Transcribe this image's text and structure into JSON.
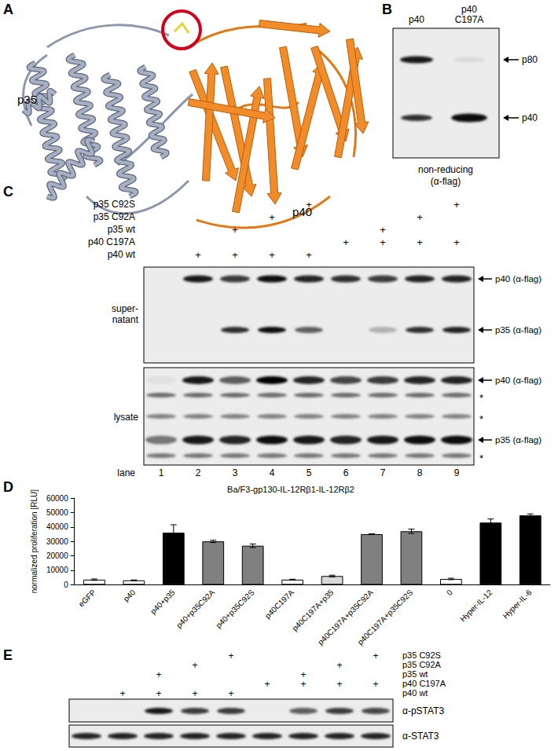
{
  "panels": {
    "A": {
      "label": "A",
      "texts": [
        "p35",
        "p40"
      ]
    },
    "B": {
      "label": "B",
      "columns": [
        [
          "p40"
        ],
        [
          "p40",
          "C197A"
        ]
      ],
      "bands": [
        "p80",
        "p40"
      ],
      "caption": [
        "non-reducing",
        "(α-flag)"
      ]
    },
    "C": {
      "label": "C",
      "mark": "+",
      "rows": [
        {
          "label": "p35 C92S",
          "lanes": [
            5,
            9
          ]
        },
        {
          "label": "p35 C92A",
          "lanes": [
            4,
            8
          ]
        },
        {
          "label": "p35 wt",
          "lanes": [
            3,
            7
          ]
        },
        {
          "label": "p40 C197A",
          "lanes": [
            6,
            7,
            8,
            9
          ]
        },
        {
          "label": "p40 wt",
          "lanes": [
            2,
            3,
            4,
            5
          ]
        }
      ],
      "blots": [
        {
          "label": [
            "super-",
            "natant"
          ],
          "bands": [
            "p40 (α-flag)",
            "p35 (α-flag)"
          ]
        },
        {
          "label": [
            "lysate"
          ],
          "bands": [
            "p40 (α-flag)",
            "p35 (α-flag)"
          ],
          "nonspecific": "*"
        }
      ],
      "lane_label": "lane",
      "lanes": [
        1,
        2,
        3,
        4,
        5,
        6,
        7,
        8,
        9
      ]
    },
    "D": {
      "label": "D"
    },
    "E": {
      "label": "E",
      "mark": "+",
      "rows": [
        {
          "label": "p35 C92S",
          "lanes": [
            5,
            9
          ]
        },
        {
          "label": "p35 C92A",
          "lanes": [
            4,
            8
          ]
        },
        {
          "label": "p35 wt",
          "lanes": [
            3,
            7
          ]
        },
        {
          "label": "p40 C197A",
          "lanes": [
            6,
            7,
            8,
            9
          ]
        },
        {
          "label": "p40 wt",
          "lanes": [
            2,
            3,
            4,
            5
          ]
        }
      ],
      "blots": [
        "α-pSTAT3",
        "α-STAT3"
      ]
    }
  },
  "chart_data": {
    "type": "bar",
    "title": "Ba/F3-gp130-IL-12Rβ1-IL-12Rβ2",
    "y_label": "normalized proliferation [RLU]",
    "categories": [
      "eGFP",
      "p40",
      "p40+p35",
      "p40+p35C92A",
      "p40+p35C92S",
      "p40C197A",
      "p40C197A+p35",
      "p40C197A+p35C92A",
      "p40C197A+p35C92S",
      "0",
      "Hyper-IL-12",
      "Hyper-IL-6"
    ],
    "values": [
      3500,
      3000,
      36000,
      30000,
      27000,
      3500,
      6000,
      35000,
      37000,
      4000,
      43000,
      48000
    ],
    "errors": [
      500,
      300,
      5500,
      800,
      1200,
      300,
      600,
      300,
      1500,
      500,
      2500,
      1000
    ],
    "colors": [
      "#ffffff",
      "#ffffff",
      "#000000",
      "#808080",
      "#808080",
      "#ffffff",
      "#d9d9d9",
      "#808080",
      "#808080",
      "#ffffff",
      "#000000",
      "#000000"
    ],
    "ylim": [
      0,
      60000
    ],
    "yticks": [
      0,
      10000,
      20000,
      30000,
      40000,
      50000,
      60000
    ],
    "grid": false
  }
}
